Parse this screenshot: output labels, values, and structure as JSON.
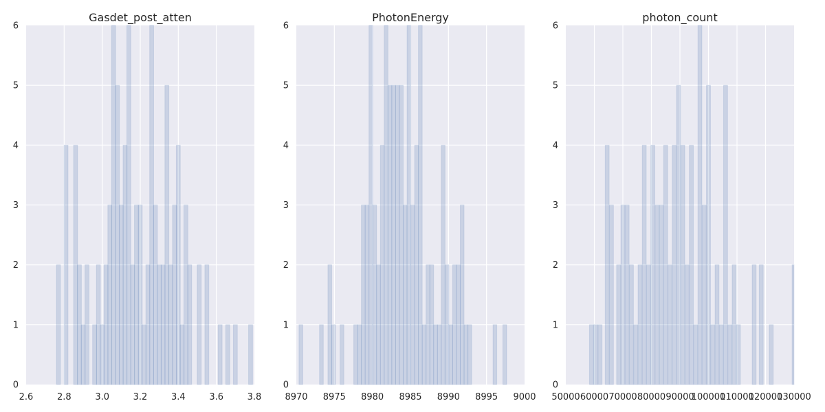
{
  "chart_data": [
    {
      "type": "bar",
      "title": "Gasdet_post_atten",
      "xlabel": "",
      "ylabel": "",
      "xlim": [
        2.6,
        3.8
      ],
      "ylim": [
        0,
        6
      ],
      "x_ticks": [
        2.6,
        2.8,
        3.0,
        3.2,
        3.4,
        3.6,
        3.8
      ],
      "x_tick_labels": [
        "2.6",
        "2.8",
        "3.0",
        "3.2",
        "3.4",
        "3.6",
        "3.8"
      ],
      "y_ticks": [
        0,
        1,
        2,
        3,
        4,
        5,
        6
      ],
      "y_tick_labels": [
        "0",
        "1",
        "2",
        "3",
        "4",
        "5",
        "6"
      ],
      "grid": true,
      "bin_width": 0.021,
      "x": [
        2.77,
        2.81,
        2.86,
        2.88,
        2.9,
        2.92,
        2.96,
        2.98,
        3.0,
        3.02,
        3.04,
        3.06,
        3.08,
        3.1,
        3.12,
        3.14,
        3.16,
        3.18,
        3.2,
        3.22,
        3.24,
        3.26,
        3.28,
        3.3,
        3.32,
        3.34,
        3.36,
        3.38,
        3.4,
        3.42,
        3.44,
        3.46,
        3.51,
        3.55,
        3.62,
        3.66,
        3.7,
        3.78
      ],
      "values": [
        2,
        4,
        4,
        2,
        1,
        2,
        1,
        2,
        1,
        2,
        3,
        6,
        5,
        3,
        4,
        6,
        2,
        3,
        3,
        1,
        2,
        6,
        3,
        2,
        2,
        5,
        2,
        3,
        4,
        1,
        3,
        2,
        2,
        2,
        1,
        1,
        1,
        1
      ]
    },
    {
      "type": "bar",
      "title": "PhotonEnergy",
      "xlabel": "",
      "ylabel": "",
      "xlim": [
        8970,
        9000
      ],
      "ylim": [
        0,
        6
      ],
      "x_ticks": [
        8970,
        8975,
        8980,
        8985,
        8990,
        8995,
        9000
      ],
      "x_tick_labels": [
        "8970",
        "8975",
        "8980",
        "8985",
        "8990",
        "8995",
        "9000"
      ],
      "y_ticks": [
        0,
        1,
        2,
        3,
        4,
        5,
        6
      ],
      "y_tick_labels": [
        "0",
        "1",
        "2",
        "3",
        "4",
        "5",
        "6"
      ],
      "grid": true,
      "bin_width": 0.5,
      "x": [
        8970.6,
        8973.3,
        8974.4,
        8974.9,
        8976.0,
        8977.8,
        8978.3,
        8978.8,
        8979.3,
        8979.8,
        8980.3,
        8980.8,
        8981.3,
        8981.8,
        8982.3,
        8982.8,
        8983.3,
        8983.8,
        8984.3,
        8984.8,
        8985.3,
        8985.8,
        8986.3,
        8986.8,
        8987.3,
        8987.8,
        8988.3,
        8988.8,
        8989.3,
        8989.8,
        8990.3,
        8990.8,
        8991.3,
        8991.8,
        8992.3,
        8992.8,
        8996.1,
        8997.4
      ],
      "values": [
        1,
        1,
        2,
        1,
        1,
        1,
        1,
        3,
        3,
        6,
        3,
        2,
        4,
        6,
        5,
        5,
        5,
        5,
        3,
        6,
        3,
        4,
        6,
        1,
        2,
        2,
        1,
        1,
        4,
        2,
        1,
        2,
        2,
        3,
        1,
        1,
        1,
        1
      ]
    },
    {
      "type": "bar",
      "title": "photon_count",
      "xlabel": "",
      "ylabel": "",
      "xlim": [
        50000,
        130000
      ],
      "ylim": [
        0,
        6
      ],
      "x_ticks": [
        50000,
        60000,
        70000,
        80000,
        90000,
        100000,
        110000,
        120000,
        130000
      ],
      "x_tick_labels": [
        "50000",
        "60000",
        "70000",
        "80000",
        "90000",
        "100000",
        "110000",
        "120000",
        "130000"
      ],
      "y_ticks": [
        0,
        1,
        2,
        3,
        4,
        5,
        6
      ],
      "y_tick_labels": [
        "0",
        "1",
        "2",
        "3",
        "4",
        "5",
        "6"
      ],
      "grid": true,
      "bin_width": 1400,
      "x": [
        59000,
        60500,
        62000,
        64500,
        66000,
        68500,
        70000,
        71500,
        73000,
        74500,
        76000,
        77500,
        79000,
        80500,
        82000,
        83500,
        85000,
        86500,
        88000,
        89500,
        91000,
        92500,
        94000,
        95500,
        97000,
        98500,
        100000,
        101500,
        103000,
        104500,
        106000,
        107500,
        109000,
        110500,
        116000,
        118500,
        122000,
        130000
      ],
      "values": [
        1,
        1,
        1,
        4,
        3,
        2,
        3,
        3,
        2,
        1,
        2,
        4,
        2,
        4,
        3,
        3,
        4,
        2,
        4,
        5,
        4,
        2,
        4,
        1,
        6,
        3,
        5,
        1,
        2,
        1,
        5,
        1,
        2,
        1,
        2,
        2,
        1,
        2
      ]
    }
  ]
}
